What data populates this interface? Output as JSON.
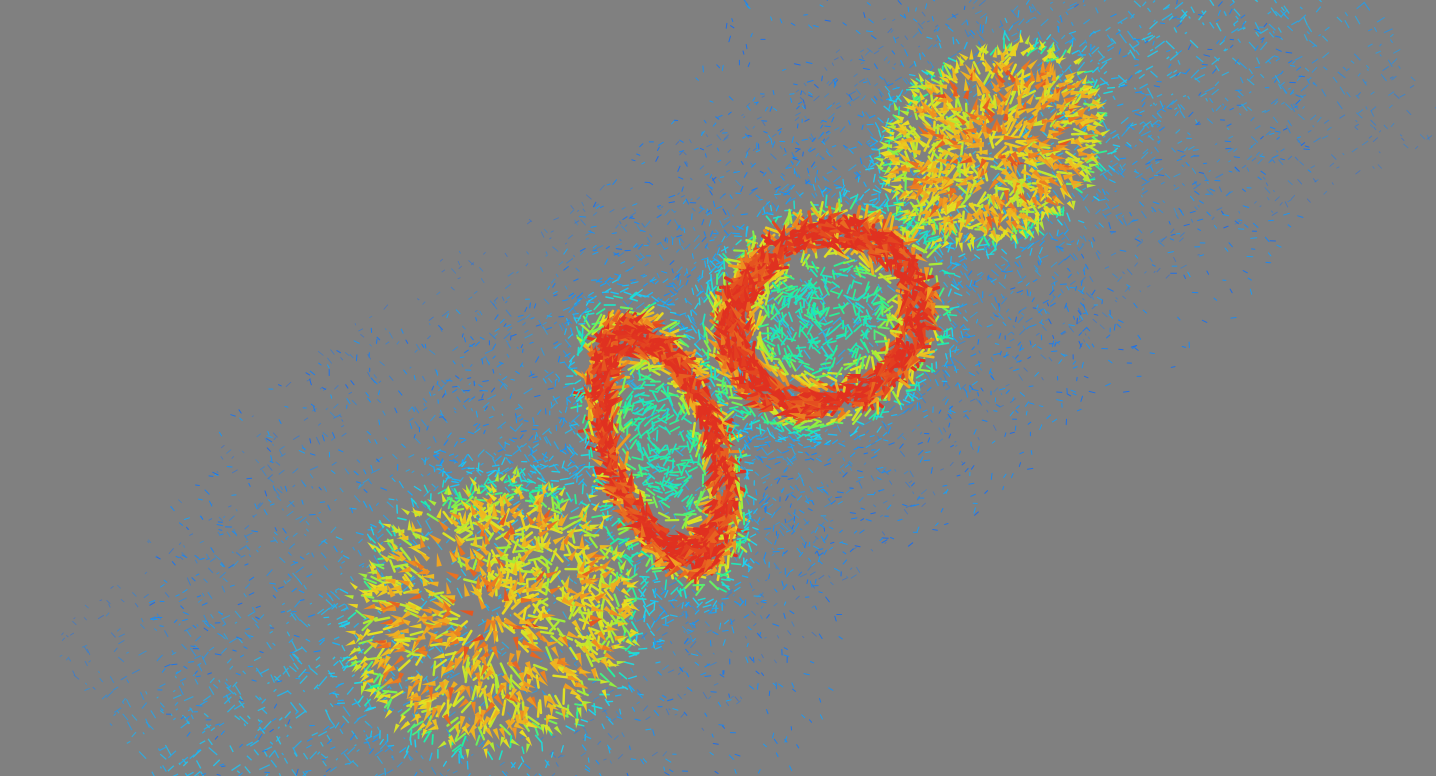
{
  "scene": {
    "background_color": "#808080",
    "colormap": [
      "#1f4fe0",
      "#1e8ff0",
      "#22d0f0",
      "#20f0a0",
      "#8ff040",
      "#e8e020",
      "#f0a020",
      "#e03020"
    ],
    "structures": [
      {
        "kind": "lobe",
        "name": "lower-left"
      },
      {
        "kind": "ring",
        "name": "center-small"
      },
      {
        "kind": "ring",
        "name": "center-middle"
      },
      {
        "kind": "lobe",
        "name": "upper-right"
      }
    ]
  }
}
